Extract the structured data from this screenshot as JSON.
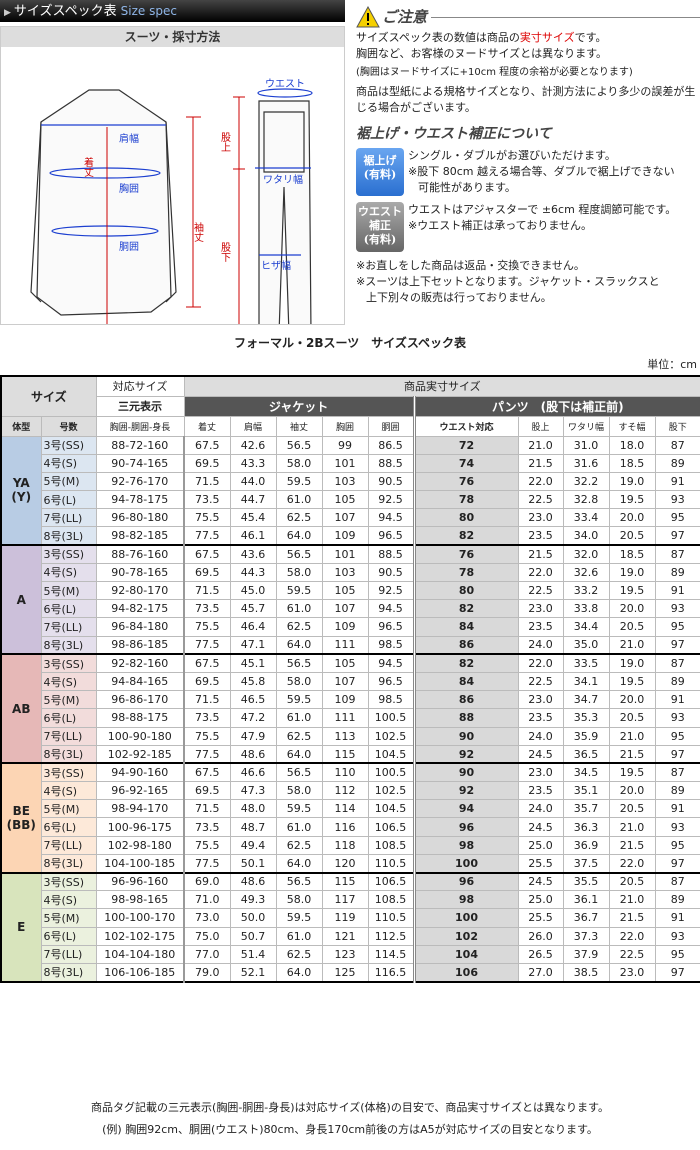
{
  "header": {
    "title": "サイズスペック表",
    "title_en": "Size spec"
  },
  "measure": {
    "title": "スーツ・採寸方法",
    "labels": {
      "shoulder": "肩幅",
      "length": "着丈",
      "chest": "胸囲",
      "waist_j": "胴囲",
      "sleeve": "袖丈",
      "waist": "ウエスト",
      "rise": "股上",
      "thigh": "ワタリ幅",
      "knee": "ヒザ幅",
      "inseam": "股下"
    }
  },
  "notice": {
    "title": "ご注意",
    "p1a": "サイズスペック表の数値は商品の",
    "p1red": "実寸サイズ",
    "p1b": "です。",
    "p2": "胸囲など、お客様のヌードサイズとは異なります。",
    "p3": "(胸囲はヌードサイズに+10cm 程度の余裕が必要となります)",
    "p4": "商品は型紙による規格サイズとなり、計測方法により多少の誤差が生じる場合がございます。",
    "sub": "裾上げ・ウエスト補正について",
    "hem": {
      "badge1": "裾上げ",
      "badge2": "(有料)",
      "l1": "シングル・ダブルがお選びいただけます。",
      "l2": "※股下 80cm 越える場合等、ダブルで裾上げできない",
      "l3": "可能性があります。"
    },
    "waist": {
      "badge1": "ウエスト",
      "badge2": "補正",
      "badge3": "(有料)",
      "l1": "ウエストはアジャスターで ±6cm 程度調節可能です。",
      "l2": "※ウエスト補正は承っておりません。"
    },
    "e1": "※お直しをした商品は返品・交換できません。",
    "e2": "※スーツは上下セットとなります。ジャケット・スラックスと",
    "e3": "上下別々の販売は行っておりません。"
  },
  "table": {
    "title": "フォーマル・2Bスーツ　サイズスペック表",
    "unit": "単位：cm",
    "h_size": "サイズ",
    "h_corr": "対応サイズ",
    "h_actual": "商品実寸サイズ",
    "h_3d": "三元表示",
    "h_jacket": "ジャケット",
    "h_pants": "パンツ　(股下は補正前)",
    "cols": [
      "体型",
      "号数",
      "胸囲-胴囲-身長",
      "着丈",
      "肩幅",
      "袖丈",
      "胸囲",
      "胴囲",
      "ウエスト対応",
      "股上",
      "ワタリ幅",
      "すそ幅",
      "股下"
    ],
    "groups": [
      {
        "name": "YA\n(Y)",
        "color": "#b8cce4",
        "light": "#dce6f1",
        "rows": [
          [
            "3号(SS)",
            "88-72-160",
            "67.5",
            "42.6",
            "56.5",
            "99",
            "86.5",
            "72",
            "21.0",
            "31.0",
            "18.0",
            "87"
          ],
          [
            "4号(S)",
            "90-74-165",
            "69.5",
            "43.3",
            "58.0",
            "101",
            "88.5",
            "74",
            "21.5",
            "31.6",
            "18.5",
            "89"
          ],
          [
            "5号(M)",
            "92-76-170",
            "71.5",
            "44.0",
            "59.5",
            "103",
            "90.5",
            "76",
            "22.0",
            "32.2",
            "19.0",
            "91"
          ],
          [
            "6号(L)",
            "94-78-175",
            "73.5",
            "44.7",
            "61.0",
            "105",
            "92.5",
            "78",
            "22.5",
            "32.8",
            "19.5",
            "93"
          ],
          [
            "7号(LL)",
            "96-80-180",
            "75.5",
            "45.4",
            "62.5",
            "107",
            "94.5",
            "80",
            "23.0",
            "33.4",
            "20.0",
            "95"
          ],
          [
            "8号(3L)",
            "98-82-185",
            "77.5",
            "46.1",
            "64.0",
            "109",
            "96.5",
            "82",
            "23.5",
            "34.0",
            "20.5",
            "97"
          ]
        ]
      },
      {
        "name": "A",
        "color": "#ccc0da",
        "light": "#e4dfec",
        "rows": [
          [
            "3号(SS)",
            "88-76-160",
            "67.5",
            "43.6",
            "56.5",
            "101",
            "88.5",
            "76",
            "21.5",
            "32.0",
            "18.5",
            "87"
          ],
          [
            "4号(S)",
            "90-78-165",
            "69.5",
            "44.3",
            "58.0",
            "103",
            "90.5",
            "78",
            "22.0",
            "32.6",
            "19.0",
            "89"
          ],
          [
            "5号(M)",
            "92-80-170",
            "71.5",
            "45.0",
            "59.5",
            "105",
            "92.5",
            "80",
            "22.5",
            "33.2",
            "19.5",
            "91"
          ],
          [
            "6号(L)",
            "94-82-175",
            "73.5",
            "45.7",
            "61.0",
            "107",
            "94.5",
            "82",
            "23.0",
            "33.8",
            "20.0",
            "93"
          ],
          [
            "7号(LL)",
            "96-84-180",
            "75.5",
            "46.4",
            "62.5",
            "109",
            "96.5",
            "84",
            "23.5",
            "34.4",
            "20.5",
            "95"
          ],
          [
            "8号(3L)",
            "98-86-185",
            "77.5",
            "47.1",
            "64.0",
            "111",
            "98.5",
            "86",
            "24.0",
            "35.0",
            "21.0",
            "97"
          ]
        ]
      },
      {
        "name": "AB",
        "color": "#e6b8b7",
        "light": "#f2dcdb",
        "rows": [
          [
            "3号(SS)",
            "92-82-160",
            "67.5",
            "45.1",
            "56.5",
            "105",
            "94.5",
            "82",
            "22.0",
            "33.5",
            "19.0",
            "87"
          ],
          [
            "4号(S)",
            "94-84-165",
            "69.5",
            "45.8",
            "58.0",
            "107",
            "96.5",
            "84",
            "22.5",
            "34.1",
            "19.5",
            "89"
          ],
          [
            "5号(M)",
            "96-86-170",
            "71.5",
            "46.5",
            "59.5",
            "109",
            "98.5",
            "86",
            "23.0",
            "34.7",
            "20.0",
            "91"
          ],
          [
            "6号(L)",
            "98-88-175",
            "73.5",
            "47.2",
            "61.0",
            "111",
            "100.5",
            "88",
            "23.5",
            "35.3",
            "20.5",
            "93"
          ],
          [
            "7号(LL)",
            "100-90-180",
            "75.5",
            "47.9",
            "62.5",
            "113",
            "102.5",
            "90",
            "24.0",
            "35.9",
            "21.0",
            "95"
          ],
          [
            "8号(3L)",
            "102-92-185",
            "77.5",
            "48.6",
            "64.0",
            "115",
            "104.5",
            "92",
            "24.5",
            "36.5",
            "21.5",
            "97"
          ]
        ]
      },
      {
        "name": "BE\n(BB)",
        "color": "#fcd5b4",
        "light": "#fde9d9",
        "rows": [
          [
            "3号(SS)",
            "94-90-160",
            "67.5",
            "46.6",
            "56.5",
            "110",
            "100.5",
            "90",
            "23.0",
            "34.5",
            "19.5",
            "87"
          ],
          [
            "4号(S)",
            "96-92-165",
            "69.5",
            "47.3",
            "58.0",
            "112",
            "102.5",
            "92",
            "23.5",
            "35.1",
            "20.0",
            "89"
          ],
          [
            "5号(M)",
            "98-94-170",
            "71.5",
            "48.0",
            "59.5",
            "114",
            "104.5",
            "94",
            "24.0",
            "35.7",
            "20.5",
            "91"
          ],
          [
            "6号(L)",
            "100-96-175",
            "73.5",
            "48.7",
            "61.0",
            "116",
            "106.5",
            "96",
            "24.5",
            "36.3",
            "21.0",
            "93"
          ],
          [
            "7号(LL)",
            "102-98-180",
            "75.5",
            "49.4",
            "62.5",
            "118",
            "108.5",
            "98",
            "25.0",
            "36.9",
            "21.5",
            "95"
          ],
          [
            "8号(3L)",
            "104-100-185",
            "77.5",
            "50.1",
            "64.0",
            "120",
            "110.5",
            "100",
            "25.5",
            "37.5",
            "22.0",
            "97"
          ]
        ]
      },
      {
        "name": "E",
        "color": "#d8e4bc",
        "light": "#ebf1de",
        "rows": [
          [
            "3号(SS)",
            "96-96-160",
            "69.0",
            "48.6",
            "56.5",
            "115",
            "106.5",
            "96",
            "24.5",
            "35.5",
            "20.5",
            "87"
          ],
          [
            "4号(S)",
            "98-98-165",
            "71.0",
            "49.3",
            "58.0",
            "117",
            "108.5",
            "98",
            "25.0",
            "36.1",
            "21.0",
            "89"
          ],
          [
            "5号(M)",
            "100-100-170",
            "73.0",
            "50.0",
            "59.5",
            "119",
            "110.5",
            "100",
            "25.5",
            "36.7",
            "21.5",
            "91"
          ],
          [
            "6号(L)",
            "102-102-175",
            "75.0",
            "50.7",
            "61.0",
            "121",
            "112.5",
            "102",
            "26.0",
            "37.3",
            "22.0",
            "93"
          ],
          [
            "7号(LL)",
            "104-104-180",
            "77.0",
            "51.4",
            "62.5",
            "123",
            "114.5",
            "104",
            "26.5",
            "37.9",
            "22.5",
            "95"
          ],
          [
            "8号(3L)",
            "106-106-185",
            "79.0",
            "52.1",
            "64.0",
            "125",
            "116.5",
            "106",
            "27.0",
            "38.5",
            "23.0",
            "97"
          ]
        ]
      }
    ]
  },
  "footer": {
    "l1": "商品タグ記載の三元表示(胸囲-胴囲-身長)は対応サイズ(体格)の目安で、商品実寸サイズとは異なります。",
    "l2": "(例) 胸囲92cm、胴囲(ウエスト)80cm、身長170cm前後の方はA5が対応サイズの目安となります。"
  }
}
